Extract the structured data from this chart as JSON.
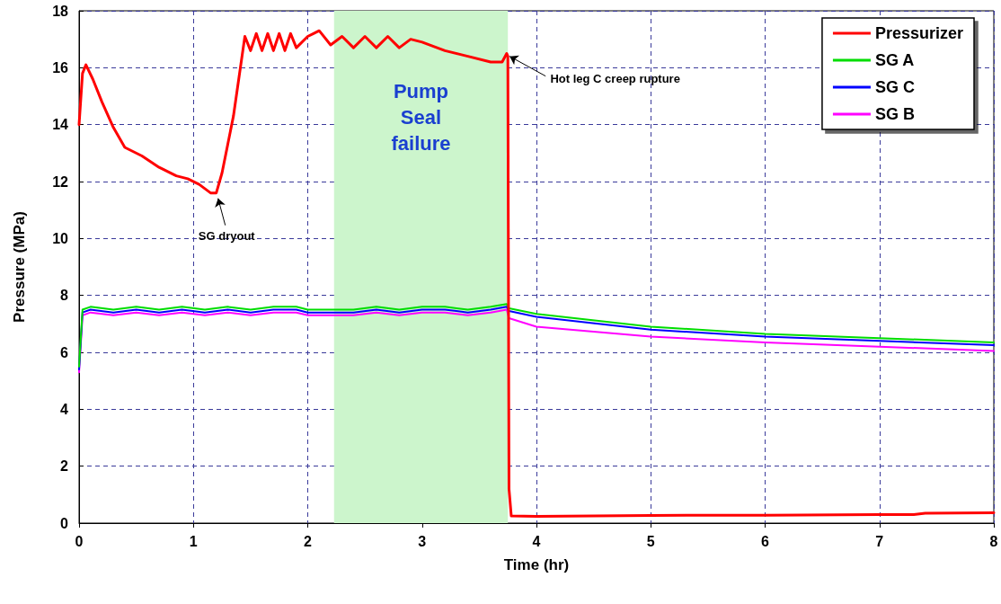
{
  "chart_data": {
    "type": "line",
    "xlabel": "Time (hr)",
    "ylabel": "Pressure (MPa)",
    "xlim": [
      0,
      8
    ],
    "xticks": [
      0,
      1,
      2,
      3,
      4,
      5,
      6,
      7,
      8
    ],
    "ylim": [
      0,
      18
    ],
    "yticks": [
      0,
      2,
      4,
      6,
      8,
      10,
      12,
      14,
      16,
      18
    ],
    "grid": true,
    "legend": "top right",
    "marker": "none",
    "line_style": "solid",
    "bands": [
      {
        "axis": "x",
        "from": 2.23,
        "to": 3.75,
        "label": "Pump Seal failure",
        "color": "#ccf5cc"
      }
    ],
    "annotations": [
      {
        "text": "SG dryout",
        "x": 1.2,
        "y": 11.6
      },
      {
        "text": "Hot leg C creep rupture",
        "x": 3.75,
        "y": 16.4
      }
    ],
    "series": [
      {
        "name": "Pressurizer",
        "color": "#ff0000",
        "x": [
          0,
          0.03,
          0.06,
          0.12,
          0.2,
          0.3,
          0.4,
          0.55,
          0.7,
          0.85,
          0.95,
          1.05,
          1.15,
          1.2,
          1.25,
          1.35,
          1.45,
          1.5,
          1.55,
          1.6,
          1.65,
          1.7,
          1.75,
          1.8,
          1.85,
          1.9,
          2.0,
          2.05,
          2.1,
          2.2,
          2.3,
          2.4,
          2.5,
          2.6,
          2.7,
          2.8,
          2.9,
          3.0,
          3.2,
          3.4,
          3.6,
          3.7,
          3.74,
          3.75,
          3.76,
          3.78,
          4.0,
          5.0,
          6.0,
          7.0,
          7.3,
          7.4,
          8.0
        ],
        "values": [
          14.0,
          15.8,
          16.1,
          15.6,
          14.8,
          13.9,
          13.2,
          12.9,
          12.5,
          12.2,
          12.1,
          11.9,
          11.6,
          11.6,
          12.3,
          14.3,
          17.1,
          16.6,
          17.2,
          16.6,
          17.2,
          16.6,
          17.2,
          16.6,
          17.2,
          16.7,
          17.1,
          17.2,
          17.3,
          16.8,
          17.1,
          16.7,
          17.1,
          16.7,
          17.1,
          16.7,
          17.0,
          16.9,
          16.6,
          16.4,
          16.2,
          16.2,
          16.5,
          16.4,
          1.2,
          0.25,
          0.24,
          0.27,
          0.28,
          0.3,
          0.3,
          0.35,
          0.36
        ]
      },
      {
        "name": "SG A",
        "color": "#00dd00",
        "x": [
          0,
          0.03,
          0.1,
          0.3,
          0.5,
          0.7,
          0.9,
          1.1,
          1.3,
          1.5,
          1.7,
          1.9,
          2.0,
          2.2,
          2.4,
          2.6,
          2.8,
          3.0,
          3.2,
          3.4,
          3.6,
          3.74,
          3.76,
          4.0,
          5.0,
          6.0,
          7.0,
          8.0
        ],
        "values": [
          5.5,
          7.5,
          7.6,
          7.5,
          7.6,
          7.5,
          7.6,
          7.5,
          7.6,
          7.5,
          7.6,
          7.6,
          7.5,
          7.5,
          7.5,
          7.6,
          7.5,
          7.6,
          7.6,
          7.5,
          7.6,
          7.7,
          7.55,
          7.35,
          6.9,
          6.65,
          6.5,
          6.35
        ]
      },
      {
        "name": "SG C",
        "color": "#0000ff",
        "x": [
          0,
          0.03,
          0.1,
          0.3,
          0.5,
          0.7,
          0.9,
          1.1,
          1.3,
          1.5,
          1.7,
          1.9,
          2.0,
          2.2,
          2.4,
          2.6,
          2.8,
          3.0,
          3.2,
          3.4,
          3.6,
          3.74,
          3.76,
          4.0,
          5.0,
          6.0,
          7.0,
          8.0
        ],
        "values": [
          5.4,
          7.4,
          7.5,
          7.4,
          7.5,
          7.4,
          7.5,
          7.4,
          7.5,
          7.4,
          7.5,
          7.5,
          7.4,
          7.4,
          7.4,
          7.5,
          7.4,
          7.5,
          7.5,
          7.4,
          7.5,
          7.6,
          7.45,
          7.25,
          6.8,
          6.55,
          6.4,
          6.25
        ]
      },
      {
        "name": "SG B",
        "color": "#ff00ff",
        "x": [
          0,
          0.03,
          0.1,
          0.3,
          0.5,
          0.7,
          0.9,
          1.1,
          1.3,
          1.5,
          1.7,
          1.9,
          2.0,
          2.2,
          2.4,
          2.6,
          2.8,
          3.0,
          3.2,
          3.4,
          3.6,
          3.74,
          3.76,
          4.0,
          5.0,
          6.0,
          7.0,
          8.0
        ],
        "values": [
          5.3,
          7.3,
          7.4,
          7.3,
          7.4,
          7.3,
          7.4,
          7.3,
          7.4,
          7.3,
          7.4,
          7.4,
          7.3,
          7.3,
          7.3,
          7.4,
          7.3,
          7.4,
          7.4,
          7.3,
          7.4,
          7.5,
          7.2,
          6.9,
          6.55,
          6.35,
          6.2,
          6.05
        ]
      }
    ]
  }
}
